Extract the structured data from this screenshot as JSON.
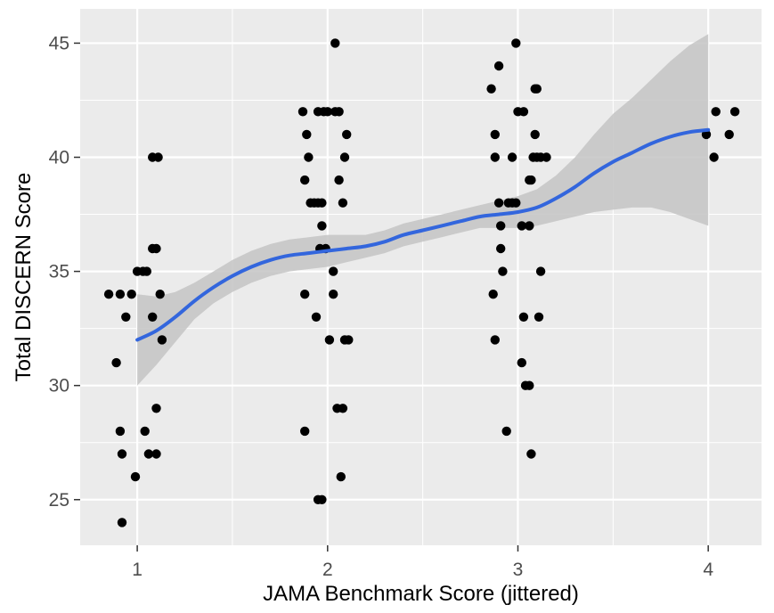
{
  "chart_data": {
    "type": "scatter",
    "title": "",
    "xlabel": "JAMA Benchmark Score (jittered)",
    "ylabel": "Total DISCERN Score",
    "xlim": [
      0.7,
      4.28
    ],
    "ylim": [
      23.0,
      46.5
    ],
    "x_ticks": [
      1,
      1.5,
      2,
      2.5,
      3,
      3.5,
      4
    ],
    "x_tick_labels": [
      "1",
      "",
      "2",
      "",
      "3",
      "",
      "4"
    ],
    "y_ticks": [
      25,
      27.5,
      30,
      32.5,
      35,
      37.5,
      40,
      42.5,
      45
    ],
    "y_tick_labels": [
      "25",
      "",
      "30",
      "",
      "35",
      "",
      "40",
      "",
      "45"
    ],
    "grid": true,
    "colors": {
      "panel_background": "#ebebeb",
      "grid_line": "#ffffff",
      "points": "#000000",
      "smooth_line": "#3366dd",
      "confidence_band": "#c4c4c4"
    },
    "series": [
      {
        "type": "scatter",
        "points": [
          [
            0.85,
            34
          ],
          [
            0.91,
            34
          ],
          [
            0.91,
            28
          ],
          [
            0.92,
            27
          ],
          [
            0.92,
            24
          ],
          [
            0.89,
            31
          ],
          [
            0.94,
            33
          ],
          [
            0.97,
            34
          ],
          [
            0.99,
            26
          ],
          [
            1.0,
            35
          ],
          [
            1.03,
            35
          ],
          [
            1.05,
            35
          ],
          [
            1.04,
            28
          ],
          [
            1.06,
            27
          ],
          [
            1.08,
            33
          ],
          [
            1.08,
            36
          ],
          [
            1.1,
            36
          ],
          [
            1.08,
            40
          ],
          [
            1.11,
            40
          ],
          [
            1.1,
            29
          ],
          [
            1.1,
            27
          ],
          [
            1.12,
            34
          ],
          [
            1.13,
            32
          ],
          [
            1.87,
            42
          ],
          [
            1.89,
            41
          ],
          [
            1.88,
            39
          ],
          [
            1.9,
            40
          ],
          [
            1.91,
            38
          ],
          [
            1.93,
            38
          ],
          [
            1.95,
            38
          ],
          [
            1.97,
            38
          ],
          [
            1.97,
            37
          ],
          [
            1.95,
            42
          ],
          [
            1.98,
            42
          ],
          [
            2.0,
            42
          ],
          [
            2.04,
            42
          ],
          [
            2.06,
            42
          ],
          [
            1.96,
            36
          ],
          [
            1.99,
            36
          ],
          [
            2.01,
            32
          ],
          [
            2.03,
            35
          ],
          [
            2.03,
            34
          ],
          [
            2.04,
            45
          ],
          [
            2.06,
            39
          ],
          [
            2.08,
            38
          ],
          [
            2.09,
            40
          ],
          [
            2.1,
            41
          ],
          [
            2.09,
            32
          ],
          [
            2.11,
            32
          ],
          [
            1.94,
            33
          ],
          [
            1.88,
            34
          ],
          [
            1.95,
            25
          ],
          [
            1.97,
            25
          ],
          [
            2.05,
            29
          ],
          [
            2.08,
            29
          ],
          [
            2.07,
            26
          ],
          [
            1.88,
            28
          ],
          [
            2.86,
            43
          ],
          [
            2.88,
            41
          ],
          [
            2.88,
            40
          ],
          [
            2.9,
            44
          ],
          [
            2.9,
            38
          ],
          [
            2.91,
            37
          ],
          [
            2.91,
            36
          ],
          [
            2.92,
            35
          ],
          [
            2.87,
            34
          ],
          [
            2.88,
            32
          ],
          [
            2.94,
            28
          ],
          [
            2.95,
            38
          ],
          [
            2.97,
            38
          ],
          [
            2.99,
            38
          ],
          [
            2.97,
            40
          ],
          [
            2.99,
            45
          ],
          [
            3.0,
            42
          ],
          [
            3.03,
            42
          ],
          [
            3.02,
            37
          ],
          [
            3.03,
            33
          ],
          [
            3.02,
            31
          ],
          [
            3.04,
            30
          ],
          [
            3.06,
            30
          ],
          [
            3.06,
            39
          ],
          [
            3.07,
            39
          ],
          [
            3.08,
            40
          ],
          [
            3.06,
            37
          ],
          [
            3.07,
            27
          ],
          [
            3.09,
            43
          ],
          [
            3.1,
            43
          ],
          [
            3.09,
            41
          ],
          [
            3.1,
            40
          ],
          [
            3.12,
            40
          ],
          [
            3.15,
            40
          ],
          [
            3.11,
            33
          ],
          [
            3.12,
            35
          ],
          [
            3.99,
            41
          ],
          [
            4.03,
            40
          ],
          [
            4.04,
            42
          ],
          [
            4.11,
            41
          ],
          [
            4.14,
            42
          ]
        ]
      },
      {
        "type": "line",
        "name": "",
        "x": [
          1.0,
          1.1,
          1.2,
          1.3,
          1.4,
          1.5,
          1.6,
          1.7,
          1.8,
          1.9,
          2.0,
          2.1,
          2.2,
          2.3,
          2.4,
          2.5,
          2.6,
          2.7,
          2.8,
          2.9,
          3.0,
          3.1,
          3.2,
          3.3,
          3.4,
          3.5,
          3.6,
          3.7,
          3.8,
          3.9,
          4.0
        ],
        "y": [
          32.0,
          32.4,
          33.0,
          33.7,
          34.3,
          34.8,
          35.2,
          35.5,
          35.7,
          35.8,
          35.9,
          36.0,
          36.1,
          36.3,
          36.6,
          36.8,
          37.0,
          37.2,
          37.4,
          37.5,
          37.6,
          37.8,
          38.2,
          38.7,
          39.3,
          39.8,
          40.2,
          40.6,
          40.9,
          41.1,
          41.2
        ],
        "ci_lower": [
          30.0,
          30.9,
          31.9,
          32.9,
          33.6,
          34.1,
          34.5,
          34.8,
          35.0,
          35.1,
          35.2,
          35.4,
          35.6,
          35.8,
          36.1,
          36.3,
          36.5,
          36.7,
          36.9,
          36.9,
          36.9,
          37.0,
          37.2,
          37.4,
          37.6,
          37.7,
          37.8,
          37.8,
          37.6,
          37.3,
          37.0
        ],
        "ci_upper": [
          34.0,
          33.9,
          34.1,
          34.5,
          35.0,
          35.5,
          35.9,
          36.2,
          36.4,
          36.5,
          36.6,
          36.6,
          36.6,
          36.8,
          37.1,
          37.3,
          37.5,
          37.7,
          37.9,
          38.1,
          38.3,
          38.6,
          39.2,
          40.0,
          41.0,
          41.9,
          42.6,
          43.4,
          44.2,
          44.9,
          45.4
        ]
      }
    ]
  }
}
